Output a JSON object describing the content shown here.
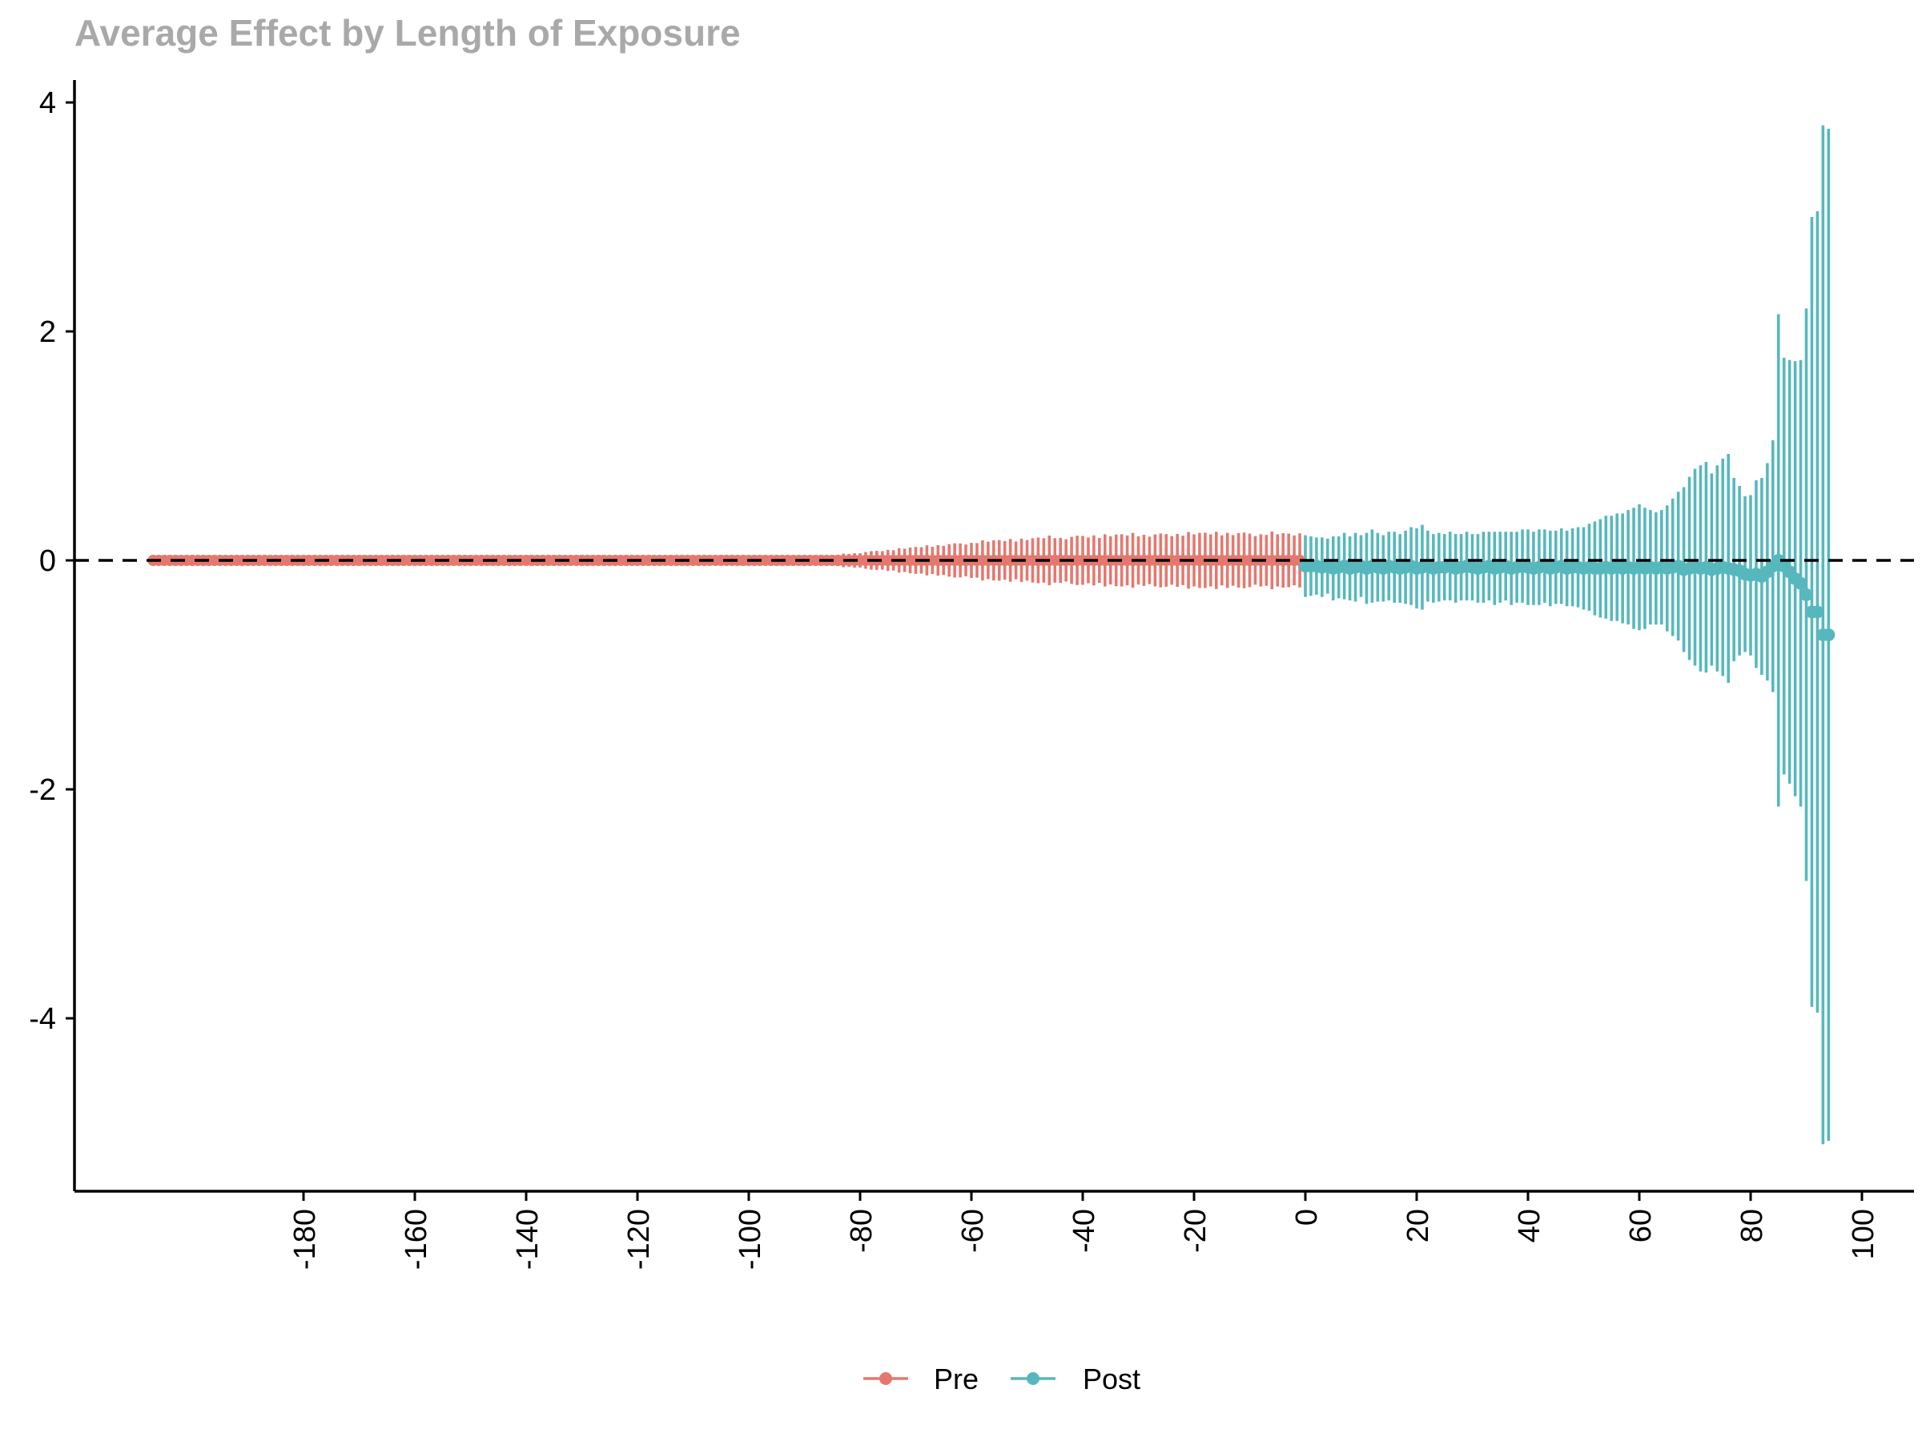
{
  "chart_data": {
    "type": "scatter",
    "title": "Average Effect by Length of Exposure",
    "xlabel": "",
    "ylabel": "",
    "xlim": [
      -210,
      102
    ],
    "ylim": [
      -5.5,
      4.2
    ],
    "xticks": [
      -180,
      -160,
      -140,
      -120,
      -100,
      -80,
      -60,
      -40,
      -20,
      0,
      20,
      40,
      60,
      80,
      100
    ],
    "xtick_labels": [
      "-180",
      "-160",
      "-140",
      "-120",
      "-100",
      "-80",
      "-60",
      "-40",
      "-20",
      "0",
      "20",
      "40",
      "60",
      "80",
      "100"
    ],
    "yticks": [
      -4,
      -2,
      0,
      2,
      4
    ],
    "ytick_labels": [
      "-4",
      "-2",
      "0",
      "2",
      "4"
    ],
    "reference_line": 0,
    "grid": false,
    "legend_position": "bottom",
    "series": [
      {
        "name": "Pre",
        "color": "#E5786E",
        "x_range": [
          -207,
          -1
        ],
        "estimate": 0,
        "ci_halfwidth_at": [
          [
            -207,
            0.01
          ],
          [
            -140,
            0.015
          ],
          [
            -100,
            0.03
          ],
          [
            -85,
            0.05
          ],
          [
            -75,
            0.1
          ],
          [
            -65,
            0.15
          ],
          [
            -55,
            0.19
          ],
          [
            -45,
            0.22
          ],
          [
            -35,
            0.24
          ],
          [
            -25,
            0.25
          ],
          [
            -15,
            0.26
          ],
          [
            -1,
            0.25
          ]
        ]
      },
      {
        "name": "Post",
        "color": "#56B8BC",
        "points": [
          [
            0,
            -0.05,
            0.27
          ],
          [
            1,
            -0.05,
            0.26
          ],
          [
            2,
            -0.05,
            0.25
          ],
          [
            3,
            -0.06,
            0.26
          ],
          [
            4,
            -0.05,
            0.24
          ],
          [
            5,
            -0.07,
            0.28
          ],
          [
            6,
            -0.06,
            0.27
          ],
          [
            7,
            -0.05,
            0.29
          ],
          [
            8,
            -0.07,
            0.28
          ],
          [
            9,
            -0.06,
            0.3
          ],
          [
            10,
            -0.05,
            0.27
          ],
          [
            11,
            -0.07,
            0.31
          ],
          [
            12,
            -0.05,
            0.32
          ],
          [
            13,
            -0.06,
            0.3
          ],
          [
            14,
            -0.07,
            0.29
          ],
          [
            15,
            -0.05,
            0.3
          ],
          [
            16,
            -0.06,
            0.31
          ],
          [
            17,
            -0.07,
            0.3
          ],
          [
            18,
            -0.06,
            0.32
          ],
          [
            19,
            -0.05,
            0.34
          ],
          [
            20,
            -0.07,
            0.35
          ],
          [
            21,
            -0.06,
            0.37
          ],
          [
            22,
            -0.05,
            0.31
          ],
          [
            23,
            -0.07,
            0.3
          ],
          [
            24,
            -0.06,
            0.3
          ],
          [
            25,
            -0.06,
            0.29
          ],
          [
            26,
            -0.05,
            0.3
          ],
          [
            27,
            -0.07,
            0.3
          ],
          [
            28,
            -0.06,
            0.29
          ],
          [
            29,
            -0.05,
            0.3
          ],
          [
            30,
            -0.06,
            0.29
          ],
          [
            31,
            -0.07,
            0.3
          ],
          [
            32,
            -0.06,
            0.31
          ],
          [
            33,
            -0.05,
            0.3
          ],
          [
            34,
            -0.07,
            0.32
          ],
          [
            35,
            -0.06,
            0.31
          ],
          [
            36,
            -0.05,
            0.3
          ],
          [
            37,
            -0.07,
            0.32
          ],
          [
            38,
            -0.06,
            0.31
          ],
          [
            39,
            -0.05,
            0.32
          ],
          [
            40,
            -0.06,
            0.33
          ],
          [
            41,
            -0.07,
            0.32
          ],
          [
            42,
            -0.06,
            0.33
          ],
          [
            43,
            -0.05,
            0.32
          ],
          [
            44,
            -0.07,
            0.33
          ],
          [
            45,
            -0.06,
            0.32
          ],
          [
            46,
            -0.05,
            0.33
          ],
          [
            47,
            -0.07,
            0.33
          ],
          [
            48,
            -0.06,
            0.34
          ],
          [
            49,
            -0.06,
            0.35
          ],
          [
            50,
            -0.07,
            0.36
          ],
          [
            51,
            -0.06,
            0.38
          ],
          [
            52,
            -0.07,
            0.41
          ],
          [
            53,
            -0.07,
            0.43
          ],
          [
            54,
            -0.06,
            0.45
          ],
          [
            55,
            -0.07,
            0.46
          ],
          [
            56,
            -0.06,
            0.47
          ],
          [
            57,
            -0.07,
            0.48
          ],
          [
            58,
            -0.06,
            0.5
          ],
          [
            59,
            -0.07,
            0.53
          ],
          [
            60,
            -0.06,
            0.55
          ],
          [
            61,
            -0.07,
            0.53
          ],
          [
            62,
            -0.06,
            0.5
          ],
          [
            63,
            -0.07,
            0.49
          ],
          [
            64,
            -0.06,
            0.5
          ],
          [
            65,
            -0.07,
            0.55
          ],
          [
            66,
            -0.06,
            0.6
          ],
          [
            67,
            -0.05,
            0.65
          ],
          [
            68,
            -0.08,
            0.72
          ],
          [
            69,
            -0.07,
            0.8
          ],
          [
            70,
            -0.06,
            0.86
          ],
          [
            71,
            -0.07,
            0.9
          ],
          [
            72,
            -0.06,
            0.92
          ],
          [
            73,
            -0.08,
            0.84
          ],
          [
            74,
            -0.07,
            0.9
          ],
          [
            75,
            -0.06,
            0.95
          ],
          [
            76,
            -0.07,
            1.0
          ],
          [
            77,
            -0.08,
            0.8
          ],
          [
            78,
            -0.09,
            0.74
          ],
          [
            79,
            -0.12,
            0.68
          ],
          [
            80,
            -0.13,
            0.7
          ],
          [
            81,
            -0.12,
            0.82
          ],
          [
            82,
            -0.14,
            0.86
          ],
          [
            83,
            -0.1,
            0.95
          ],
          [
            84,
            -0.05,
            1.1
          ],
          [
            85,
            0.0,
            2.15
          ],
          [
            86,
            -0.05,
            1.82
          ],
          [
            87,
            -0.1,
            1.85
          ],
          [
            88,
            -0.16,
            1.9
          ],
          [
            89,
            -0.2,
            1.95
          ],
          [
            90,
            -0.3,
            2.5
          ],
          [
            91,
            -0.45,
            3.45
          ],
          [
            92,
            -0.45,
            3.5
          ],
          [
            93,
            -0.65,
            4.45
          ],
          [
            94,
            -0.65,
            4.42
          ]
        ]
      }
    ]
  },
  "legend": {
    "items": [
      {
        "label": "Pre",
        "color": "#E5786E"
      },
      {
        "label": "Post",
        "color": "#56B8BC"
      }
    ]
  }
}
